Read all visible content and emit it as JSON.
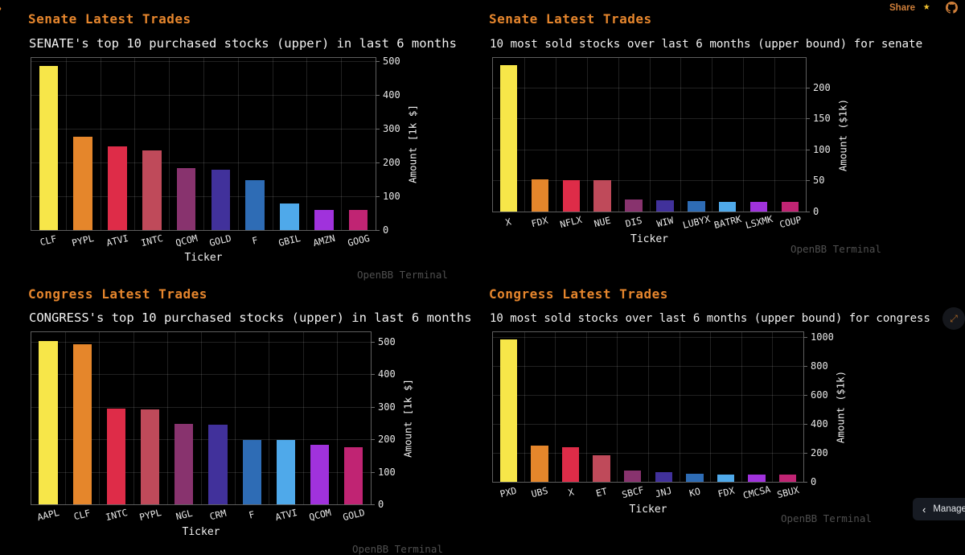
{
  "page": {
    "background": "#000000",
    "accent_orange": "#e6862d"
  },
  "topbar": {
    "share_label": "Share",
    "star_icon": "star",
    "github_icon": "github-logo"
  },
  "sidebar_toggle_icon": "chevron-right",
  "watermark": "OpenBB Terminal",
  "corner_button": {
    "chevron": "‹",
    "label": "Manage a"
  },
  "expand_icon": "⤢",
  "palette": [
    "#F7E649",
    "#E5862B",
    "#DE2C48",
    "#BF4A5A",
    "#88336E",
    "#41319B",
    "#2E6CB5",
    "#4FA9EA",
    "#A032DC",
    "#C02473"
  ],
  "chart_data": [
    {
      "type": "bar",
      "panel_header": "Senate Latest Trades",
      "title": "SENATE's top 10 purchased stocks (upper) in last 6 months",
      "categories": [
        "CLF",
        "PYPL",
        "ATVI",
        "INTC",
        "QCOM",
        "GOLD",
        "F",
        "GBIL",
        "AMZN",
        "GOOG"
      ],
      "values": [
        487,
        277,
        248,
        235,
        183,
        179,
        148,
        78,
        60,
        59
      ],
      "xlabel": "Ticker",
      "ylabel": "Amount [1k $]",
      "yticks": [
        0,
        100,
        200,
        300,
        400,
        500
      ],
      "ylim": [
        0,
        510
      ],
      "grid": true,
      "legend": "none"
    },
    {
      "type": "bar",
      "panel_header": "Senate Latest Trades",
      "title": "10 most sold stocks over last 6 months (upper bound) for senate",
      "categories": [
        "X",
        "FDX",
        "NFLX",
        "NUE",
        "DIS",
        "WIW",
        "LUBYX",
        "BATRK",
        "LSXMK",
        "COUP"
      ],
      "values": [
        236,
        52,
        51,
        50,
        20,
        18,
        17,
        16,
        16,
        16
      ],
      "xlabel": "Ticker",
      "ylabel": "Amount ($1k)",
      "yticks": [
        0,
        50,
        100,
        150,
        200
      ],
      "ylim": [
        0,
        248
      ],
      "grid": true,
      "legend": "none"
    },
    {
      "type": "bar",
      "panel_header": "Congress Latest Trades",
      "title": "CONGRESS's top 10 purchased stocks (upper) in last 6 months",
      "categories": [
        "AAPL",
        "CLF",
        "INTC",
        "PYPL",
        "NGL",
        "CRM",
        "F",
        "ATVI",
        "QCOM",
        "GOLD"
      ],
      "values": [
        503,
        494,
        295,
        292,
        247,
        245,
        198,
        197,
        183,
        176
      ],
      "xlabel": "Ticker",
      "ylabel": "Amount [1k $]",
      "yticks": [
        0,
        100,
        200,
        300,
        400,
        500
      ],
      "ylim": [
        0,
        530
      ],
      "grid": true,
      "legend": "none"
    },
    {
      "type": "bar",
      "panel_header": "Congress Latest Trades",
      "title": "10 most sold stocks over last 6 months (upper bound) for congress",
      "categories": [
        "PXD",
        "UBS",
        "X",
        "ET",
        "SBCF",
        "JNJ",
        "KO",
        "FDX",
        "CMCSA",
        "SBUX"
      ],
      "values": [
        985,
        250,
        240,
        185,
        80,
        68,
        55,
        52,
        50,
        50
      ],
      "xlabel": "Ticker",
      "ylabel": "Amount ($1k)",
      "yticks": [
        0,
        200,
        400,
        600,
        800,
        1000
      ],
      "ylim": [
        0,
        1035
      ],
      "grid": true,
      "legend": "none"
    }
  ]
}
